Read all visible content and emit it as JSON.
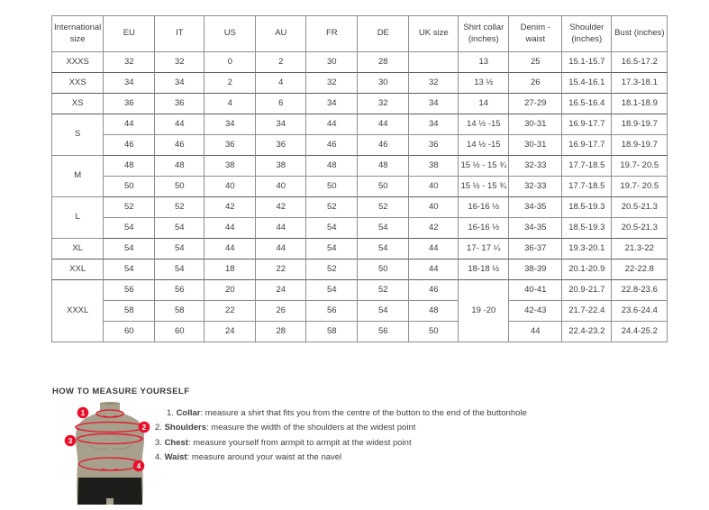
{
  "colors": {
    "accent_red": "#e8112d",
    "mannequin_body": "#a7a08c",
    "mannequin_shorts": "#1d1d1b",
    "table_border": "#8f8f8f",
    "text": "#3c3c3c"
  },
  "size_chart": {
    "headers": [
      "International size",
      "EU",
      "IT",
      "US",
      "AU",
      "FR",
      "DE",
      "UK size",
      "Shirt collar (inches)",
      "Denim - waist",
      "Shoulder (inches)",
      "Bust (inches)"
    ],
    "rows": [
      {
        "end": true,
        "cells": [
          {
            "v": "XXXS"
          },
          {
            "v": "32"
          },
          {
            "v": "32"
          },
          {
            "v": "0"
          },
          {
            "v": "2"
          },
          {
            "v": "30"
          },
          {
            "v": "28"
          },
          {
            "v": ""
          },
          {
            "v": "13"
          },
          {
            "v": "25"
          },
          {
            "v": "15.1-15.7"
          },
          {
            "v": "16.5-17.2"
          }
        ]
      },
      {
        "end": true,
        "cells": [
          {
            "v": "XXS"
          },
          {
            "v": "34"
          },
          {
            "v": "34"
          },
          {
            "v": "2"
          },
          {
            "v": "4"
          },
          {
            "v": "32"
          },
          {
            "v": "30"
          },
          {
            "v": "32"
          },
          {
            "v": "13 ½"
          },
          {
            "v": "26"
          },
          {
            "v": "15.4-16.1"
          },
          {
            "v": "17.3-18.1"
          }
        ]
      },
      {
        "end": true,
        "cells": [
          {
            "v": "XS"
          },
          {
            "v": "36"
          },
          {
            "v": "36"
          },
          {
            "v": "4"
          },
          {
            "v": "6"
          },
          {
            "v": "34"
          },
          {
            "v": "32"
          },
          {
            "v": "34"
          },
          {
            "v": "14"
          },
          {
            "v": "27-29"
          },
          {
            "v": "16.5-16.4"
          },
          {
            "v": "18.1-18.9"
          }
        ]
      },
      {
        "cells": [
          {
            "v": "S",
            "rs": 2
          },
          {
            "v": "44"
          },
          {
            "v": "44"
          },
          {
            "v": "34"
          },
          {
            "v": "34"
          },
          {
            "v": "44"
          },
          {
            "v": "44"
          },
          {
            "v": "34"
          },
          {
            "v": "14 ½ -15"
          },
          {
            "v": "30-31"
          },
          {
            "v": "16.9-17.7"
          },
          {
            "v": "18.9-19.7"
          }
        ]
      },
      {
        "end": true,
        "cells": [
          {
            "v": "46"
          },
          {
            "v": "46"
          },
          {
            "v": "36"
          },
          {
            "v": "36"
          },
          {
            "v": "46"
          },
          {
            "v": "46"
          },
          {
            "v": "36"
          },
          {
            "v": "14 ½ -15"
          },
          {
            "v": "30-31"
          },
          {
            "v": "16.9-17.7"
          },
          {
            "v": "18.9-19.7"
          }
        ]
      },
      {
        "cells": [
          {
            "v": "M",
            "rs": 2
          },
          {
            "v": "48"
          },
          {
            "v": "48"
          },
          {
            "v": "38"
          },
          {
            "v": "38"
          },
          {
            "v": "48"
          },
          {
            "v": "48"
          },
          {
            "v": "38"
          },
          {
            "v": "15 ½ - 15 ¾"
          },
          {
            "v": "32-33"
          },
          {
            "v": "17.7-18.5"
          },
          {
            "v": "19.7- 20.5"
          }
        ]
      },
      {
        "end": true,
        "cells": [
          {
            "v": "50"
          },
          {
            "v": "50"
          },
          {
            "v": "40"
          },
          {
            "v": "40"
          },
          {
            "v": "50"
          },
          {
            "v": "50"
          },
          {
            "v": "40"
          },
          {
            "v": "15 ½ - 15 ¾"
          },
          {
            "v": "32-33"
          },
          {
            "v": "17.7-18.5"
          },
          {
            "v": "19.7- 20.5"
          }
        ]
      },
      {
        "cells": [
          {
            "v": "L",
            "rs": 2
          },
          {
            "v": "52"
          },
          {
            "v": "52"
          },
          {
            "v": "42"
          },
          {
            "v": "42"
          },
          {
            "v": "52"
          },
          {
            "v": "52"
          },
          {
            "v": "40"
          },
          {
            "v": "16-16 ½"
          },
          {
            "v": "34-35"
          },
          {
            "v": "18.5-19.3"
          },
          {
            "v": "20.5-21.3"
          }
        ]
      },
      {
        "end": true,
        "cells": [
          {
            "v": "54"
          },
          {
            "v": "54"
          },
          {
            "v": "44"
          },
          {
            "v": "44"
          },
          {
            "v": "54"
          },
          {
            "v": "54"
          },
          {
            "v": "42"
          },
          {
            "v": "16-16 ½"
          },
          {
            "v": "34-35"
          },
          {
            "v": "18.5-19.3"
          },
          {
            "v": "20.5-21.3"
          }
        ]
      },
      {
        "end": true,
        "cells": [
          {
            "v": "XL"
          },
          {
            "v": "54"
          },
          {
            "v": "54"
          },
          {
            "v": "44"
          },
          {
            "v": "44"
          },
          {
            "v": "54"
          },
          {
            "v": "54"
          },
          {
            "v": "44"
          },
          {
            "v": "17- 17 ¼"
          },
          {
            "v": "36-37"
          },
          {
            "v": "19.3-20.1"
          },
          {
            "v": "21.3-22"
          }
        ]
      },
      {
        "end": true,
        "cells": [
          {
            "v": "XXL"
          },
          {
            "v": "54"
          },
          {
            "v": "54"
          },
          {
            "v": "18"
          },
          {
            "v": "22"
          },
          {
            "v": "52"
          },
          {
            "v": "50"
          },
          {
            "v": "44"
          },
          {
            "v": "18-18 ½"
          },
          {
            "v": "38-39"
          },
          {
            "v": "20.1-20.9"
          },
          {
            "v": "22-22.8"
          }
        ]
      },
      {
        "cells": [
          {
            "v": "XXXL",
            "rs": 3
          },
          {
            "v": "56"
          },
          {
            "v": "56"
          },
          {
            "v": "20"
          },
          {
            "v": "24"
          },
          {
            "v": "54"
          },
          {
            "v": "52"
          },
          {
            "v": "46"
          },
          {
            "v": "19 -20",
            "rs": 3
          },
          {
            "v": "40-41"
          },
          {
            "v": "20.9-21.7"
          },
          {
            "v": "22.8-23.6"
          }
        ]
      },
      {
        "cells": [
          {
            "v": "58"
          },
          {
            "v": "58"
          },
          {
            "v": "22"
          },
          {
            "v": "26"
          },
          {
            "v": "56"
          },
          {
            "v": "54"
          },
          {
            "v": "48"
          },
          {
            "v": "42-43"
          },
          {
            "v": "21.7-22.4"
          },
          {
            "v": "23.6-24.4"
          }
        ]
      },
      {
        "cells": [
          {
            "v": "60"
          },
          {
            "v": "60"
          },
          {
            "v": "24"
          },
          {
            "v": "28"
          },
          {
            "v": "58"
          },
          {
            "v": "56"
          },
          {
            "v": "50"
          },
          {
            "v": "44"
          },
          {
            "v": "22.4-23.2"
          },
          {
            "v": "24.4-25.2"
          }
        ]
      }
    ]
  },
  "how_to": {
    "title": "HOW TO MEASURE YOURSELF",
    "badges": [
      "1",
      "2",
      "3",
      "4"
    ],
    "steps": [
      {
        "num": "1.",
        "label": "Collar",
        "text": "measure a shirt that fits you from the centre of the button to the end of the buttonhole"
      },
      {
        "num": "2.",
        "label": "Shoulders",
        "text": "measure the width of the shoulders at the widest point"
      },
      {
        "num": "3.",
        "label": "Chest",
        "text": "measure yourself from armpit to armpit at the widest point"
      },
      {
        "num": "4.",
        "label": "Waist",
        "text": "measure around your waist at the navel"
      }
    ]
  }
}
